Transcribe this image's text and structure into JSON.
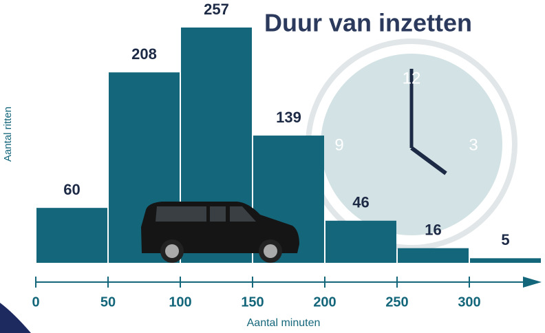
{
  "chart_data": {
    "type": "histogram",
    "title": "Duur van inzetten",
    "x_label": "Aantal minuten",
    "y_label": "Aantal ritten",
    "bins": [
      0,
      50,
      100,
      150,
      200,
      250,
      300,
      350
    ],
    "values": [
      60,
      208,
      257,
      139,
      46,
      16,
      5
    ],
    "color": "#14667a",
    "xlim": [
      0,
      350
    ],
    "xticks": [
      0,
      50,
      100,
      150,
      200,
      250,
      300
    ]
  },
  "decoration": {
    "clock_numbers": [
      "12",
      "3",
      "9"
    ]
  }
}
